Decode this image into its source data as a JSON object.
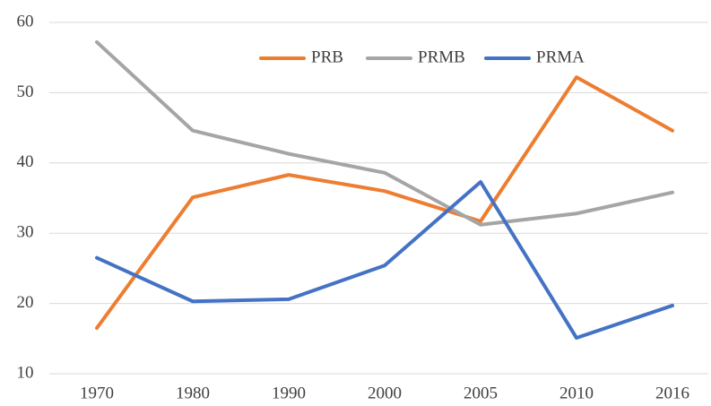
{
  "chart_data": {
    "type": "line",
    "categories": [
      "1970",
      "1980",
      "1990",
      "2000",
      "2005",
      "2010",
      "2016"
    ],
    "series": [
      {
        "name": "PRB",
        "color": "#ed7d31",
        "values": [
          16.5,
          35.1,
          38.3,
          36,
          31.7,
          52.2,
          44.6
        ]
      },
      {
        "name": "PRMB",
        "color": "#a5a5a5",
        "values": [
          57.2,
          44.6,
          41.3,
          38.6,
          31.2,
          32.8,
          35.8
        ]
      },
      {
        "name": "PRMA",
        "color": "#4472c4",
        "values": [
          26.5,
          20.3,
          20.6,
          25.4,
          37.3,
          15.1,
          19.7
        ]
      }
    ],
    "ylim": [
      10,
      60
    ],
    "yticks": [
      10,
      20,
      30,
      40,
      50,
      60
    ],
    "grid": true,
    "legend": "top"
  }
}
